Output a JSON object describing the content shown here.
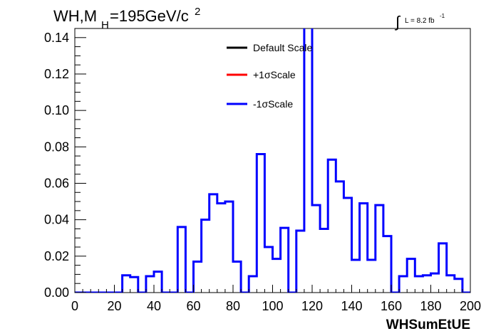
{
  "chart_data": {
    "type": "line",
    "title_parts": {
      "prefix": "WH,M",
      "subscript": "H",
      "value": "=195GeV/c",
      "superscript": "2"
    },
    "lumi": {
      "integral_sign": "∫",
      "text": "L = 8.2 fb",
      "superscript": "-1"
    },
    "xlabel": "WHSumEtUE",
    "ylabel": "",
    "xlim": [
      0,
      200
    ],
    "ylim": [
      0,
      0.145
    ],
    "x_ticks": [
      "0",
      "20",
      "40",
      "60",
      "80",
      "100",
      "120",
      "140",
      "160",
      "180",
      "200"
    ],
    "y_ticks": [
      "0.00",
      "0.02",
      "0.04",
      "0.06",
      "0.08",
      "0.10",
      "0.12",
      "0.14"
    ],
    "bin_width": 4,
    "bin_starts": [
      0,
      4,
      8,
      12,
      16,
      20,
      24,
      28,
      32,
      36,
      40,
      44,
      48,
      52,
      56,
      60,
      64,
      68,
      72,
      76,
      80,
      84,
      88,
      92,
      96,
      100,
      104,
      108,
      112,
      116,
      120,
      124,
      128,
      132,
      136,
      140,
      144,
      148,
      152,
      156,
      160,
      164,
      168,
      172,
      176,
      180,
      184,
      188,
      192,
      196
    ],
    "legend": {
      "position": "top-center",
      "entries": [
        {
          "label": "Default Scale",
          "color": "#000000"
        },
        {
          "label": "+1σScale",
          "color": "#ff0000"
        },
        {
          "label": "-1σScale",
          "color": "#0000ff"
        }
      ]
    },
    "series": [
      {
        "name": "-1σScale",
        "color": "#0000ff",
        "values": [
          0,
          0,
          0,
          0,
          0,
          0,
          0.0095,
          0.0085,
          0,
          0.009,
          0.0115,
          0,
          0,
          0.036,
          0,
          0.017,
          0.04,
          0.054,
          0.049,
          0.05,
          0.017,
          0,
          0.009,
          0.076,
          0.025,
          0.0185,
          0.0355,
          0,
          0.034,
          0.15,
          0.048,
          0.035,
          0.073,
          0.061,
          0.052,
          0.018,
          0.049,
          0.018,
          0.048,
          0.031,
          0,
          0.009,
          0.0185,
          0.009,
          0.0095,
          0.0105,
          0.027,
          0.0095,
          0.0075,
          0
        ]
      }
    ]
  }
}
